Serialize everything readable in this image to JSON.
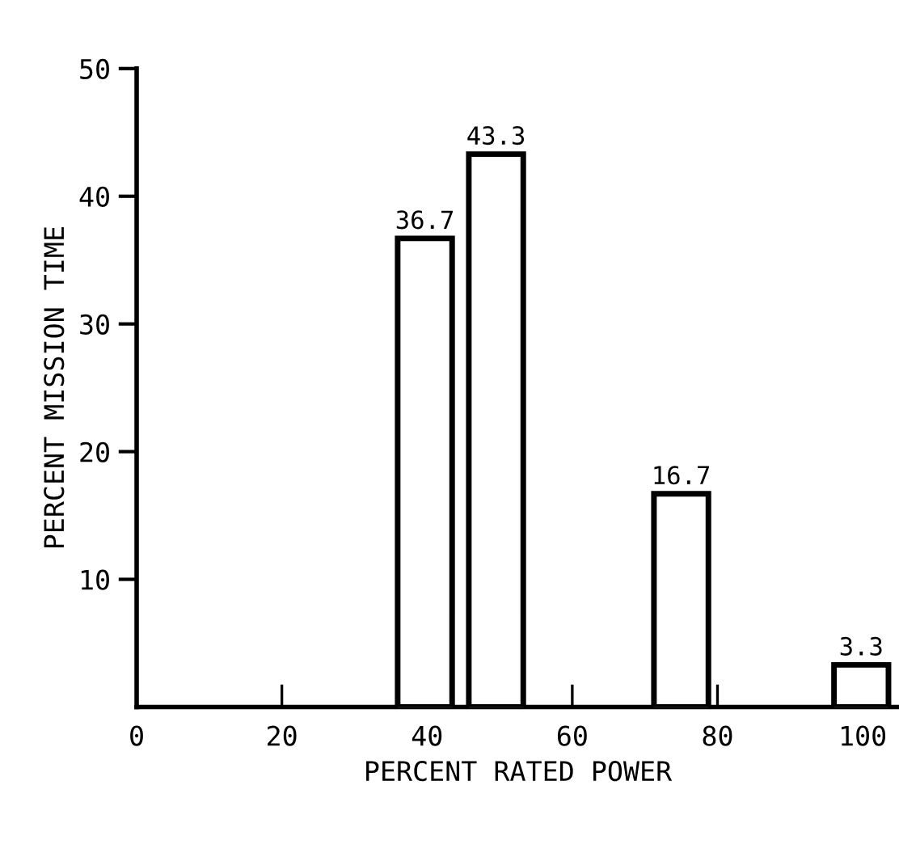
{
  "chart_data": {
    "type": "bar",
    "xlabel": "PERCENT RATED POWER",
    "ylabel": "PERCENT MISSION TIME",
    "x": [
      39.7,
      49.5,
      75,
      99.8
    ],
    "values": [
      36.7,
      43.3,
      16.7,
      3.3
    ],
    "color": "#ffffff",
    "data_labels": true,
    "xlim": [
      0,
      105
    ],
    "xticks": [
      0,
      20,
      40,
      60,
      80,
      100
    ],
    "ylim": [
      0,
      50
    ],
    "yticks": [
      10,
      20,
      30,
      40,
      50
    ],
    "grid": false,
    "legend": false
  }
}
